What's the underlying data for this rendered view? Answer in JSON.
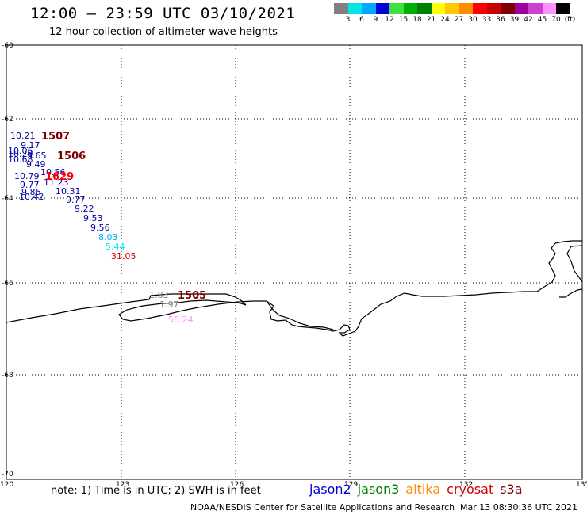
{
  "header": {
    "title": "12:00 – 23:59 UTC 03/10/2021",
    "subtitle": "12 hour collection of altimeter wave heights"
  },
  "legend": {
    "colors": [
      "#808080",
      "#00e5e5",
      "#00a8ff",
      "#0000d8",
      "#40e040",
      "#00b000",
      "#008000",
      "#ffff00",
      "#ffc800",
      "#ff8c00",
      "#ff0000",
      "#c80000",
      "#800000",
      "#a000a0",
      "#d040d0",
      "#ff90ff",
      "#000000"
    ],
    "labels": [
      "3",
      "6",
      "9",
      "12",
      "15",
      "18",
      "21",
      "24",
      "27",
      "30",
      "33",
      "36",
      "39",
      "42",
      "45",
      "70",
      "(ft)"
    ]
  },
  "axes": {
    "lat_labels": [
      "-60",
      "-62",
      "-64",
      "-66",
      "-68",
      "-70"
    ],
    "lon_labels": [
      "120",
      "123",
      "126",
      "129",
      "132",
      "135"
    ]
  },
  "observations": [
    {
      "text": "10.21",
      "color": "#0000a0"
    },
    {
      "text": "9.17",
      "color": "#0000a0"
    },
    {
      "text": "10.06",
      "color": "#0000a0"
    },
    {
      "text": "10.29",
      "color": "#0000a0"
    },
    {
      "text": "9.65",
      "color": "#0000a0"
    },
    {
      "text": "10.68",
      "color": "#0000a0"
    },
    {
      "text": "9.49",
      "color": "#0000a0"
    },
    {
      "text": "10.56",
      "color": "#0000a0"
    },
    {
      "text": "10.79",
      "color": "#0000a0"
    },
    {
      "text": "11.23",
      "color": "#0000a0"
    },
    {
      "text": "9.77",
      "color": "#0000a0"
    },
    {
      "text": "10.31",
      "color": "#0000a0"
    },
    {
      "text": "9.86",
      "color": "#0000a0"
    },
    {
      "text": "10.42",
      "color": "#0000a0"
    },
    {
      "text": "9.77",
      "color": "#0000a0"
    },
    {
      "text": "9.22",
      "color": "#0000a0"
    },
    {
      "text": "9.53",
      "color": "#0000a0"
    },
    {
      "text": "9.56",
      "color": "#0000a0"
    },
    {
      "text": "8.03",
      "color": "#00a8ff"
    },
    {
      "text": "5.44",
      "color": "#00e5e5"
    },
    {
      "text": "31.05",
      "color": "#d00000"
    },
    {
      "text": "1.83",
      "color": "#808080"
    },
    {
      "text": "1.97",
      "color": "#808080"
    },
    {
      "text": "56.24",
      "color": "#ff90ff"
    }
  ],
  "passes": [
    {
      "text": "1507",
      "color": "#800000"
    },
    {
      "text": "1506",
      "color": "#800000"
    },
    {
      "text": "1629",
      "color": "#ff0000"
    },
    {
      "text": "1505",
      "color": "#800000"
    }
  ],
  "footer": {
    "note": "note: 1) Time is in UTC; 2) SWH is in feet",
    "satellites": [
      {
        "name": "jason2",
        "color": "#0000d8"
      },
      {
        "name": "jason3",
        "color": "#008000"
      },
      {
        "name": "altika",
        "color": "#ff8c00"
      },
      {
        "name": "cryosat",
        "color": "#d00000"
      },
      {
        "name": "s3a",
        "color": "#800000"
      }
    ],
    "credit": "NOAA/NESDIS Center for Satellite Applications and Research",
    "timestamp": "Mar 13 08:30:36 UTC 2021"
  }
}
